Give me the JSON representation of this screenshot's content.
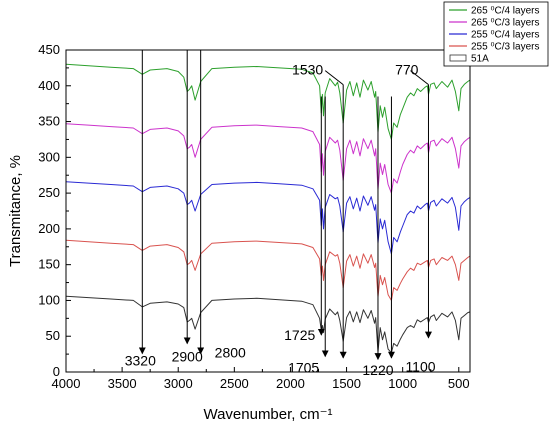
{
  "chart_data": {
    "type": "line",
    "xlabel": "Wavenumber, cm⁻¹",
    "ylabel": "Transmitance, %",
    "xlim": [
      4000,
      400
    ],
    "ylim": [
      0,
      450
    ],
    "x_ticks": [
      "4000",
      "3500",
      "3000",
      "2500",
      "2000",
      "1500",
      "1000",
      "500"
    ],
    "y_ticks": [
      "0",
      "50",
      "100",
      "150",
      "200",
      "250",
      "300",
      "350",
      "400",
      "450"
    ],
    "grid": false,
    "legend_position": "top-right",
    "legend": [
      {
        "label": "265 ⁰C/4 layers",
        "color": "#2ca02c"
      },
      {
        "label": "265 ⁰C/3 layers",
        "color": "#cc33cc"
      },
      {
        "label": "255 ⁰C/4 layers",
        "color": "#2a2ad4"
      },
      {
        "label": "255 ⁰C/3 layers",
        "color": "#d9534f"
      },
      {
        "label": "51A",
        "color": "#333333"
      }
    ],
    "series": [
      {
        "name": "51A",
        "color": "#333333",
        "x": [
          4000,
          3800,
          3600,
          3400,
          3320,
          3250,
          3100,
          3000,
          2950,
          2920,
          2900,
          2880,
          2850,
          2800,
          2700,
          2500,
          2300,
          2100,
          1900,
          1800,
          1740,
          1725,
          1715,
          1705,
          1690,
          1650,
          1600,
          1580,
          1560,
          1530,
          1500,
          1470,
          1440,
          1410,
          1380,
          1350,
          1310,
          1280,
          1250,
          1240,
          1220,
          1200,
          1180,
          1160,
          1130,
          1100,
          1080,
          1050,
          1020,
          1000,
          960,
          930,
          900,
          870,
          840,
          800,
          780,
          770,
          750,
          720,
          700,
          650,
          600,
          560,
          530,
          500,
          480,
          450,
          420,
          400
        ],
        "y": [
          106,
          104,
          102,
          100,
          91,
          96,
          98,
          95,
          90,
          70,
          72,
          75,
          60,
          83,
          100,
          102,
          103,
          101,
          99,
          94,
          75,
          58,
          65,
          55,
          74,
          88,
          80,
          84,
          72,
          43,
          76,
          85,
          70,
          84,
          69,
          87,
          75,
          86,
          68,
          76,
          28,
          62,
          45,
          56,
          32,
          27,
          40,
          36,
          46,
          52,
          62,
          65,
          62,
          73,
          70,
          74,
          76,
          69,
          77,
          80,
          72,
          82,
          77,
          84,
          72,
          45,
          75,
          79,
          83,
          84
        ]
      },
      {
        "name": "255 ⁰C/3 layers",
        "color": "#d9534f",
        "x": [
          4000,
          3800,
          3600,
          3400,
          3320,
          3250,
          3100,
          3000,
          2950,
          2920,
          2900,
          2880,
          2850,
          2800,
          2700,
          2500,
          2300,
          2100,
          1900,
          1800,
          1740,
          1725,
          1715,
          1705,
          1690,
          1650,
          1600,
          1580,
          1560,
          1530,
          1500,
          1470,
          1440,
          1410,
          1380,
          1350,
          1310,
          1280,
          1250,
          1240,
          1220,
          1200,
          1180,
          1160,
          1130,
          1100,
          1080,
          1050,
          1020,
          1000,
          960,
          930,
          900,
          870,
          840,
          800,
          780,
          770,
          750,
          720,
          700,
          650,
          600,
          560,
          530,
          500,
          480,
          450,
          420,
          400
        ],
        "y": [
          184,
          182,
          180,
          178,
          170,
          176,
          178,
          174,
          168,
          150,
          152,
          156,
          142,
          165,
          180,
          182,
          183,
          181,
          179,
          174,
          158,
          135,
          148,
          128,
          150,
          168,
          162,
          164,
          152,
          118,
          155,
          164,
          148,
          162,
          145,
          165,
          152,
          164,
          146,
          152,
          105,
          135,
          122,
          132,
          108,
          100,
          118,
          114,
          124,
          130,
          140,
          145,
          142,
          152,
          150,
          154,
          156,
          146,
          156,
          158,
          150,
          160,
          156,
          162,
          150,
          128,
          152,
          156,
          160,
          162
        ]
      },
      {
        "name": "255 ⁰C/4 layers",
        "color": "#2a2ad4",
        "x": [
          4000,
          3800,
          3600,
          3400,
          3320,
          3250,
          3100,
          3000,
          2950,
          2920,
          2900,
          2880,
          2850,
          2800,
          2700,
          2500,
          2300,
          2100,
          1900,
          1800,
          1740,
          1725,
          1715,
          1705,
          1690,
          1650,
          1600,
          1580,
          1560,
          1530,
          1500,
          1470,
          1440,
          1410,
          1380,
          1350,
          1310,
          1280,
          1250,
          1240,
          1220,
          1200,
          1180,
          1160,
          1130,
          1100,
          1080,
          1050,
          1020,
          1000,
          960,
          930,
          900,
          870,
          840,
          800,
          780,
          770,
          750,
          720,
          700,
          650,
          600,
          560,
          530,
          500,
          480,
          450,
          420,
          400
        ],
        "y": [
          266,
          264,
          262,
          260,
          252,
          258,
          260,
          256,
          250,
          234,
          236,
          240,
          225,
          248,
          262,
          264,
          265,
          263,
          261,
          256,
          240,
          205,
          228,
          200,
          230,
          248,
          242,
          244,
          232,
          196,
          236,
          245,
          228,
          243,
          225,
          246,
          233,
          245,
          226,
          234,
          180,
          214,
          200,
          212,
          182,
          165,
          188,
          182,
          196,
          204,
          220,
          225,
          222,
          232,
          228,
          234,
          236,
          225,
          237,
          240,
          232,
          242,
          236,
          244,
          230,
          198,
          232,
          238,
          242,
          244
        ]
      },
      {
        "name": "265 ⁰C/3 layers",
        "color": "#cc33cc",
        "x": [
          4000,
          3800,
          3600,
          3400,
          3320,
          3250,
          3100,
          3000,
          2950,
          2920,
          2900,
          2880,
          2850,
          2800,
          2700,
          2500,
          2300,
          2100,
          1900,
          1800,
          1740,
          1725,
          1715,
          1705,
          1690,
          1650,
          1600,
          1580,
          1560,
          1530,
          1500,
          1470,
          1440,
          1410,
          1380,
          1350,
          1310,
          1280,
          1250,
          1240,
          1220,
          1200,
          1180,
          1160,
          1130,
          1100,
          1080,
          1050,
          1020,
          1000,
          960,
          930,
          900,
          870,
          840,
          800,
          780,
          770,
          750,
          720,
          700,
          650,
          600,
          560,
          530,
          500,
          480,
          450,
          420,
          400
        ],
        "y": [
          347,
          345,
          343,
          341,
          333,
          339,
          341,
          337,
          330,
          312,
          314,
          318,
          300,
          325,
          342,
          344,
          345,
          343,
          341,
          336,
          318,
          280,
          305,
          275,
          308,
          328,
          320,
          324,
          310,
          268,
          312,
          324,
          305,
          322,
          302,
          326,
          312,
          324,
          302,
          312,
          255,
          292,
          276,
          290,
          262,
          250,
          270,
          264,
          280,
          290,
          304,
          310,
          306,
          316,
          312,
          318,
          320,
          306,
          322,
          324,
          316,
          326,
          320,
          328,
          312,
          285,
          316,
          322,
          326,
          328
        ]
      },
      {
        "name": "265 ⁰C/4 layers",
        "color": "#2ca02c",
        "x": [
          4000,
          3800,
          3600,
          3400,
          3320,
          3250,
          3100,
          3000,
          2950,
          2920,
          2900,
          2880,
          2850,
          2800,
          2700,
          2500,
          2300,
          2100,
          1900,
          1800,
          1740,
          1725,
          1715,
          1705,
          1690,
          1650,
          1600,
          1580,
          1560,
          1530,
          1500,
          1470,
          1440,
          1410,
          1380,
          1350,
          1310,
          1280,
          1250,
          1240,
          1220,
          1200,
          1180,
          1160,
          1130,
          1100,
          1080,
          1050,
          1020,
          1000,
          960,
          930,
          900,
          870,
          840,
          800,
          780,
          770,
          750,
          720,
          700,
          650,
          600,
          560,
          530,
          500,
          480,
          450,
          420,
          400
        ],
        "y": [
          430,
          428,
          426,
          424,
          416,
          422,
          424,
          420,
          412,
          392,
          395,
          400,
          380,
          406,
          424,
          426,
          427,
          425,
          423,
          418,
          400,
          362,
          388,
          358,
          390,
          410,
          400,
          405,
          390,
          348,
          394,
          406,
          386,
          404,
          384,
          408,
          394,
          406,
          384,
          392,
          335,
          372,
          356,
          370,
          340,
          325,
          348,
          342,
          360,
          368,
          384,
          390,
          386,
          396,
          392,
          398,
          400,
          388,
          402,
          404,
          396,
          406,
          398,
          408,
          392,
          365,
          396,
          402,
          406,
          408
        ]
      }
    ],
    "annotations": [
      {
        "label": "3320",
        "x": 3320,
        "y_top": 450,
        "y_tip": 26
      },
      {
        "label": "2900",
        "x": 2920,
        "y_top": 450,
        "y_tip": 40
      },
      {
        "label": "2800",
        "x": 2800,
        "y_top": 450,
        "y_tip": 26
      },
      {
        "label": "1725",
        "x": 1725,
        "y_top": 385,
        "y_tip": 52
      },
      {
        "label": "1705",
        "x": 1690,
        "y_top": 385,
        "y_tip": 22
      },
      {
        "label": "1530",
        "x": 1530,
        "y_top": 410,
        "y_tip": 20
      },
      {
        "label": "1220",
        "x": 1220,
        "y_top": 385,
        "y_tip": 18
      },
      {
        "label": "1100",
        "x": 1100,
        "y_top": 385,
        "y_tip": 20
      },
      {
        "label": "770",
        "x": 770,
        "y_top": 410,
        "y_tip": 48
      }
    ]
  }
}
